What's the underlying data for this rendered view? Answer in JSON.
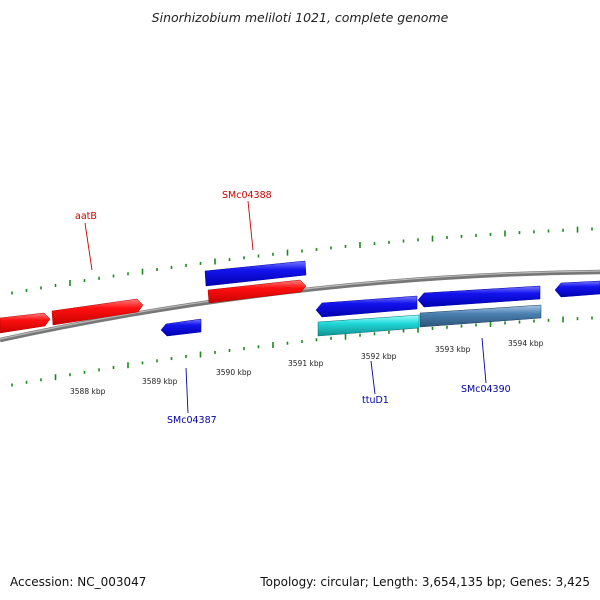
{
  "title": "Sinorhizobium meliloti 1021, complete genome",
  "footer": {
    "accession": "Accession: NC_003047",
    "summary": "Topology: circular; Length: 3,654,135 bp; Genes: 3,425"
  },
  "colors": {
    "forward_gene": "#ee0000",
    "reverse_gene": "#1010dd",
    "cyan_gene": "#18c8c8",
    "steel_gene": "#4a80b0",
    "backbone": "#888888",
    "tick": "#1a8a1a",
    "label_red": "#cc0000",
    "label_blue": "#0000aa"
  },
  "position_labels": [
    "3588 kbp",
    "3589 kbp",
    "3590 kbp",
    "3591 kbp",
    "3592 kbp",
    "3593 kbp",
    "3594 kbp"
  ],
  "gene_labels": [
    {
      "name": "aatB",
      "color": "red"
    },
    {
      "name": "SMc04388",
      "color": "red"
    },
    {
      "name": "SMc04387",
      "color": "blue"
    },
    {
      "name": "ttuD1",
      "color": "blue"
    },
    {
      "name": "SMc04390",
      "color": "blue"
    }
  ]
}
